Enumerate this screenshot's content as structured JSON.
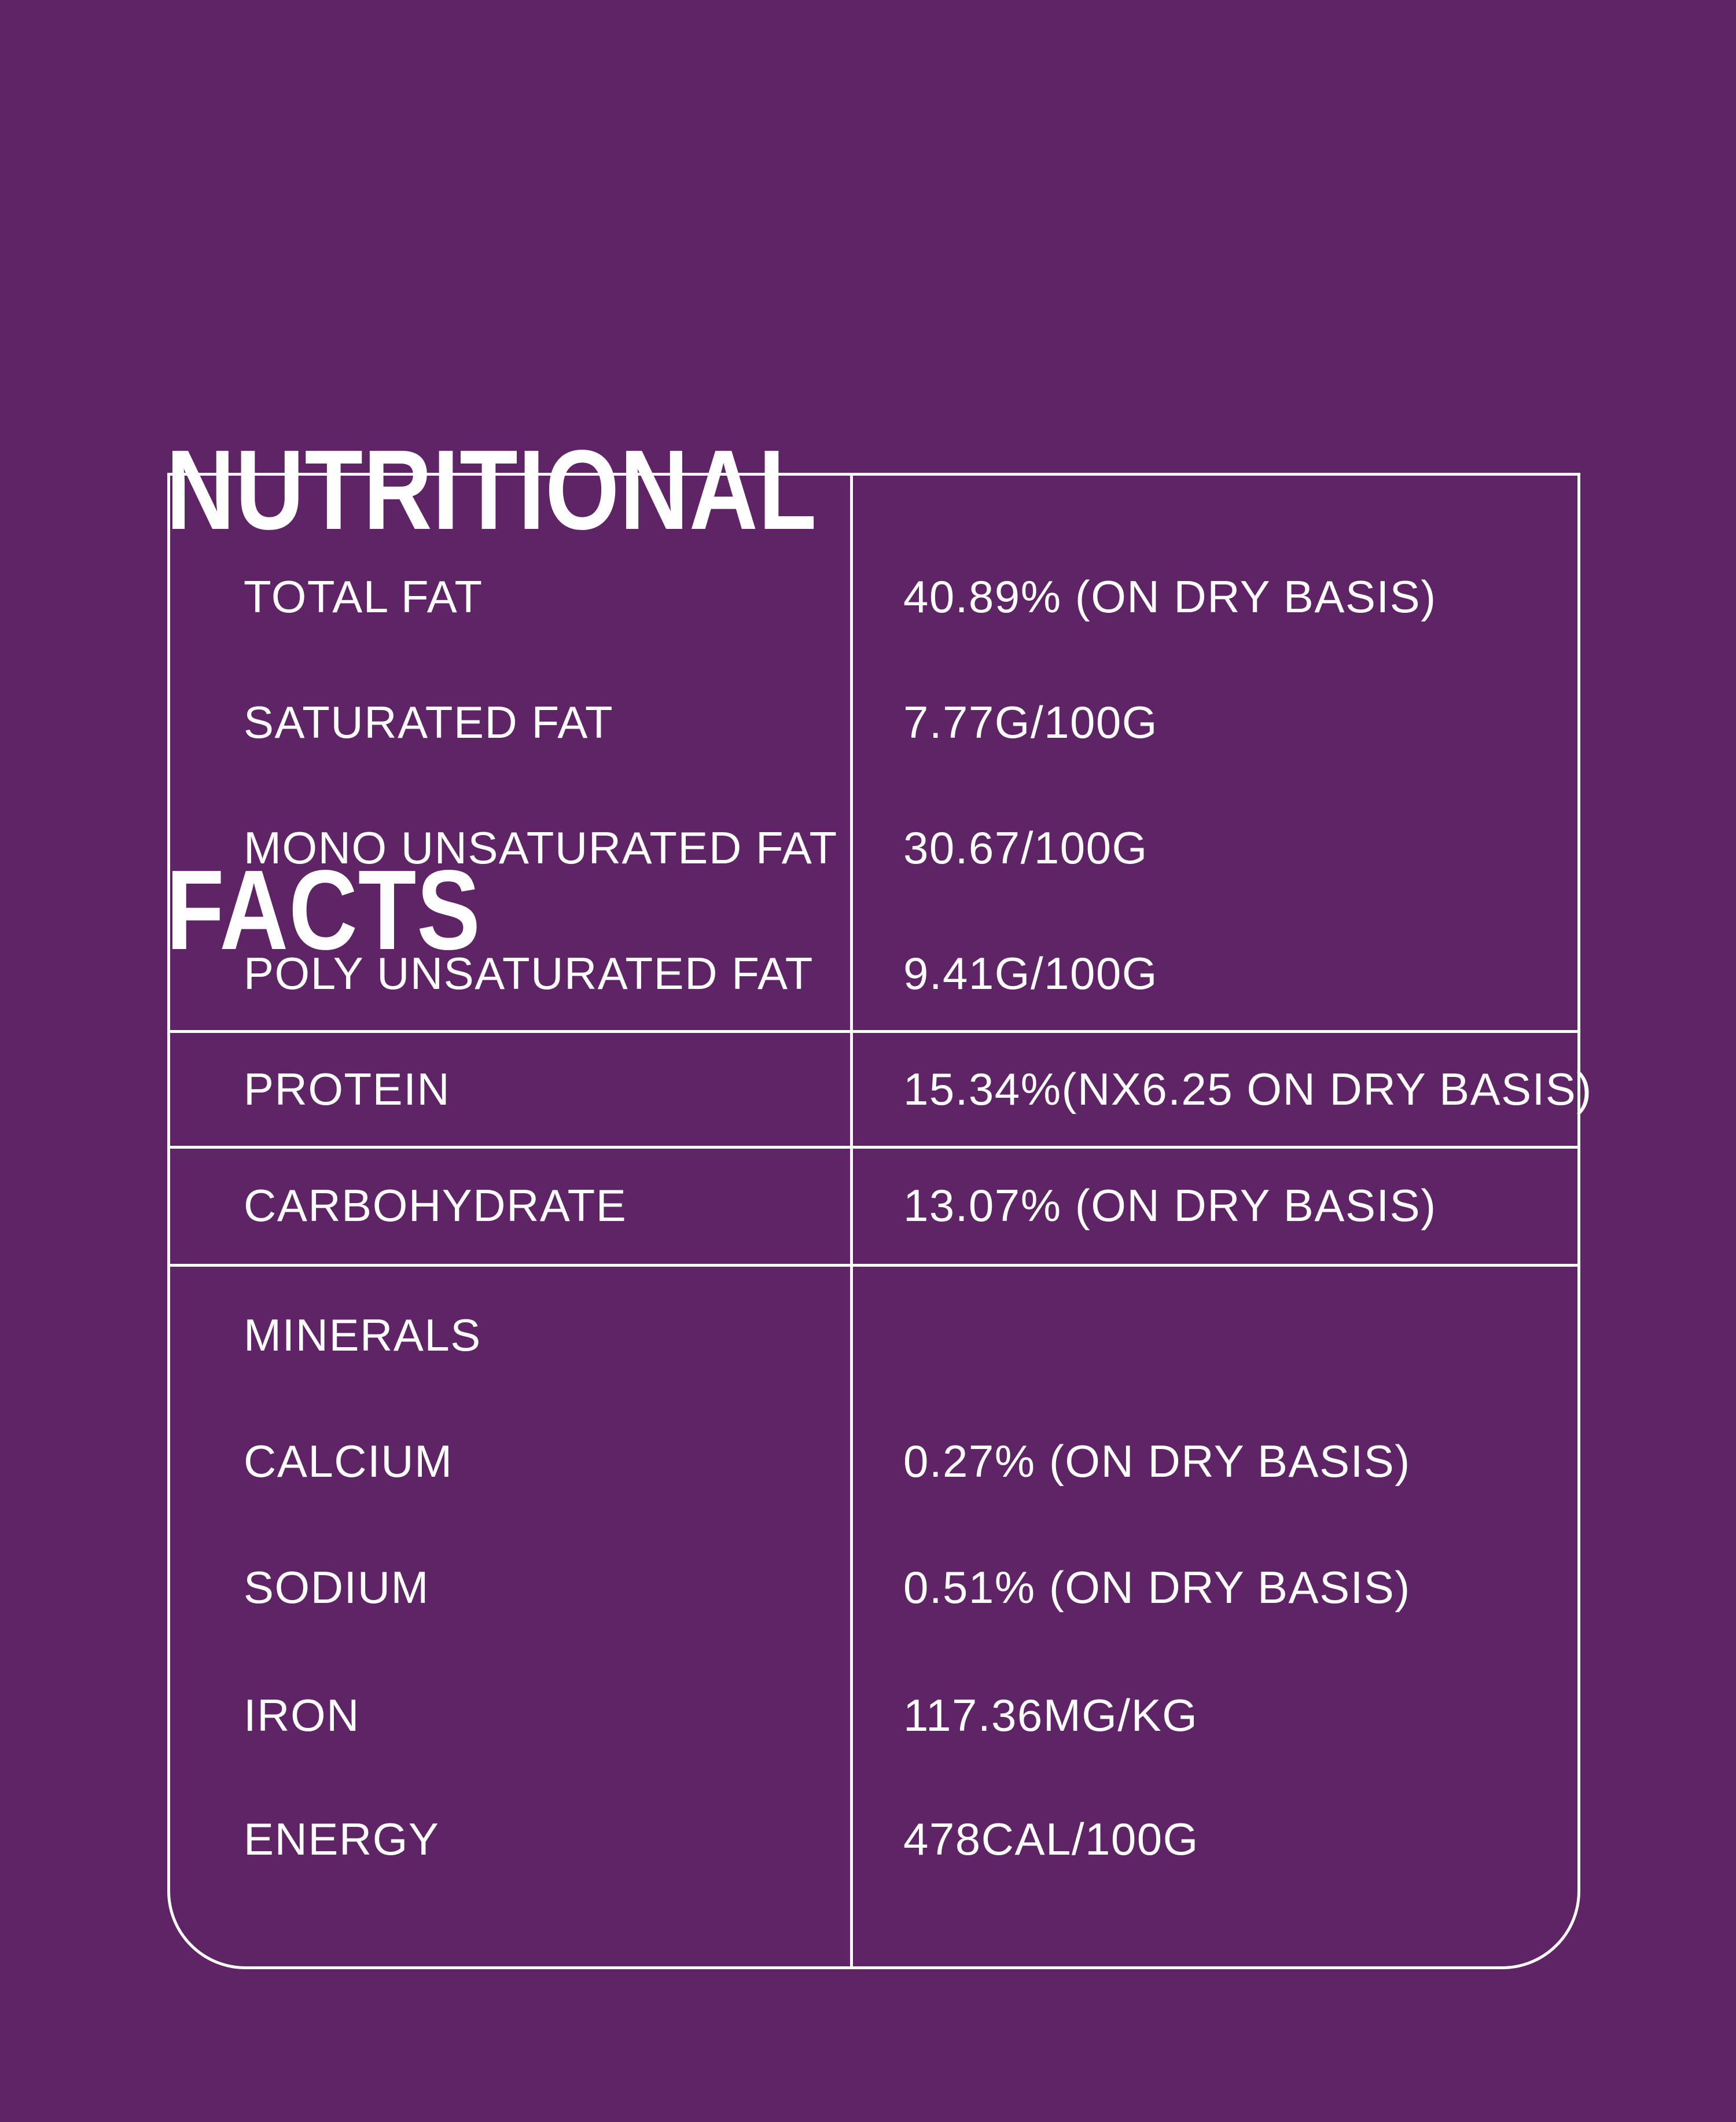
{
  "page": {
    "background_color": "#5F2466",
    "text_color": "#FFFFFF",
    "line_color": "#FFFFFF"
  },
  "title": {
    "line1": "NUTRITIONAL",
    "line2": "FACTS"
  },
  "table": {
    "rows": [
      {
        "label": "TOTAL FAT",
        "value": "40.89% (ON DRY BASIS)"
      },
      {
        "label": "SATURATED FAT",
        "value": "7.77G/100G"
      },
      {
        "label": "MONO UNSATURATED FAT",
        "value": "30.67/100G"
      },
      {
        "label": "POLY UNSATURATED FAT",
        "value": "9.41G/100G"
      },
      {
        "label": "PROTEIN",
        "value": "15.34%(NX6.25 ON DRY BASIS)"
      },
      {
        "label": "CARBOHYDRATE",
        "value": "13.07% (ON DRY BASIS)"
      },
      {
        "label": "MINERALS",
        "value": ""
      },
      {
        "label": "CALCIUM",
        "value": "0.27% (ON DRY BASIS)"
      },
      {
        "label": "SODIUM",
        "value": "0.51% (ON DRY BASIS)"
      },
      {
        "label": "IRON",
        "value": "117.36MG/KG"
      },
      {
        "label": "ENERGY",
        "value": "478CAL/100G"
      }
    ]
  }
}
